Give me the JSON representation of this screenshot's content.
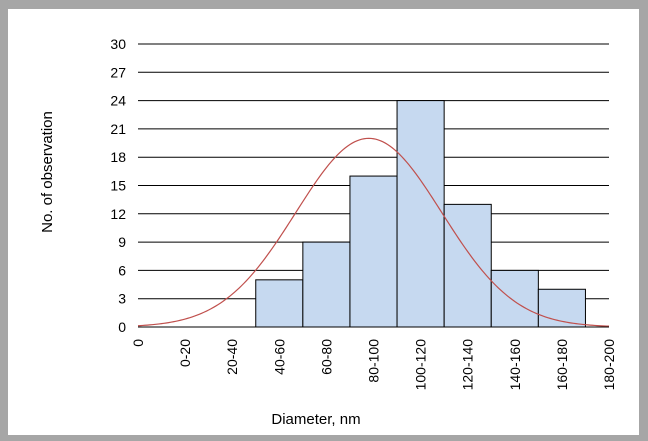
{
  "chart_data": {
    "type": "bar",
    "categories": [
      "0",
      "0-20",
      "20-40",
      "40-60",
      "60-80",
      "80-100",
      "100-120",
      "120-140",
      "140-160",
      "160-180",
      "180-200"
    ],
    "values": [
      0,
      0,
      5,
      9,
      16,
      24,
      13,
      6,
      4,
      0,
      0
    ],
    "fit_curve": {
      "type": "normal",
      "mean_category_index": 4.9,
      "peak": 20,
      "sd_categories": 1.55,
      "color": "#c0504d"
    },
    "xlabel": "Diameter, nm",
    "ylabel": "No. of observation",
    "ylim": [
      0,
      30
    ],
    "yticks": [
      0,
      3,
      6,
      9,
      12,
      15,
      18,
      21,
      24,
      27,
      30
    ],
    "grid": true,
    "bar_color": "#c6d9f0",
    "legend": "none"
  }
}
